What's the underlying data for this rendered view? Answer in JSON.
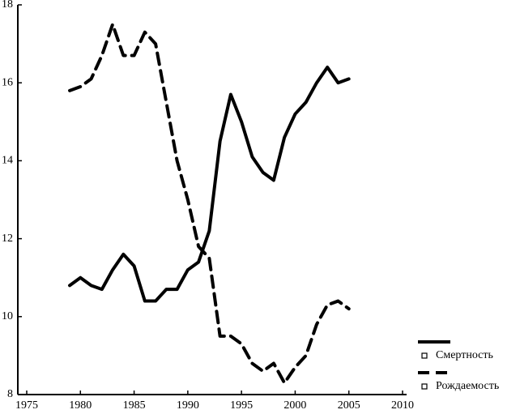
{
  "chart_data": {
    "type": "line",
    "x": [
      1979,
      1980,
      1981,
      1982,
      1983,
      1984,
      1985,
      1986,
      1987,
      1988,
      1989,
      1990,
      1991,
      1992,
      1993,
      1994,
      1995,
      1996,
      1997,
      1998,
      1999,
      2000,
      2001,
      2002,
      2003,
      2004,
      2005
    ],
    "series": [
      {
        "name": "Смертность",
        "color": "#000000",
        "dash": "solid",
        "values": [
          10.8,
          11.0,
          10.8,
          10.7,
          11.2,
          11.6,
          11.3,
          10.4,
          10.4,
          10.7,
          10.7,
          11.2,
          11.4,
          12.2,
          14.5,
          15.7,
          15.0,
          14.1,
          13.7,
          13.5,
          14.6,
          15.2,
          15.5,
          16.0,
          16.4,
          16.0,
          16.1
        ]
      },
      {
        "name": "Рождаемость",
        "color": "#000000",
        "dash": "dashed",
        "values": [
          15.8,
          15.9,
          16.1,
          16.7,
          17.5,
          16.7,
          16.7,
          17.3,
          17.0,
          15.5,
          14.0,
          13.0,
          11.8,
          11.5,
          9.5,
          9.5,
          9.3,
          8.8,
          8.6,
          8.8,
          8.3,
          8.7,
          9.0,
          9.8,
          10.3,
          10.4,
          10.2
        ]
      }
    ],
    "xlim": [
      1975,
      2010
    ],
    "xticks": [
      1975,
      1980,
      1985,
      1990,
      1995,
      2000,
      2005,
      2010
    ],
    "ylim": [
      8,
      18
    ],
    "yticks": [
      8,
      10,
      12,
      14,
      16,
      18
    ],
    "legend": "bottom-right"
  }
}
